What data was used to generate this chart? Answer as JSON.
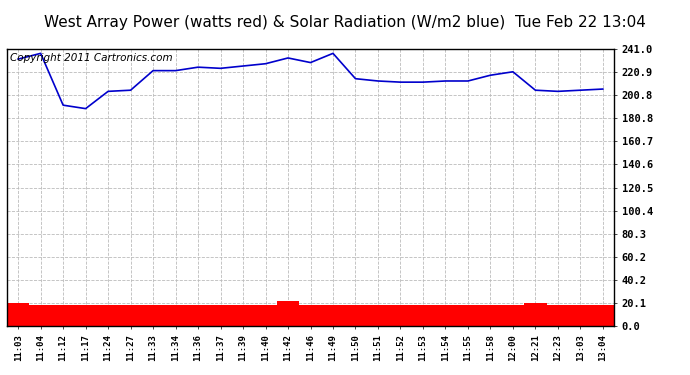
{
  "title": "West Array Power (watts red) & Solar Radiation (W/m2 blue)  Tue Feb 22 13:04",
  "copyright": "Copyright 2011 Cartronics.com",
  "x_labels": [
    "11:03",
    "11:04",
    "11:12",
    "11:17",
    "11:24",
    "11:27",
    "11:33",
    "11:34",
    "11:36",
    "11:37",
    "11:39",
    "11:40",
    "11:42",
    "11:46",
    "11:49",
    "11:50",
    "11:51",
    "11:52",
    "11:53",
    "11:54",
    "11:55",
    "11:58",
    "12:00",
    "12:21",
    "12:23",
    "13:03",
    "13:04"
  ],
  "blue_values": [
    232,
    237,
    192,
    189,
    204,
    205,
    222,
    222,
    225,
    224,
    226,
    228,
    233,
    229,
    237,
    215,
    213,
    212,
    212,
    213,
    213,
    218,
    221,
    205,
    204,
    205,
    206
  ],
  "red_values": [
    20.5,
    18.5,
    18.5,
    18.5,
    18.5,
    18.5,
    18.5,
    18.5,
    18.5,
    18.5,
    18.5,
    18.5,
    21.5,
    18.5,
    18.5,
    18.5,
    18.5,
    18.5,
    18.5,
    18.5,
    18.5,
    18.5,
    18.5,
    20.5,
    18.5,
    18.5,
    18.5
  ],
  "y_ticks": [
    0.0,
    20.1,
    40.2,
    60.2,
    80.3,
    100.4,
    120.5,
    140.6,
    160.7,
    180.8,
    200.8,
    220.9,
    241.0
  ],
  "y_tick_labels": [
    "0.0",
    "20.1",
    "40.2",
    "60.2",
    "80.3",
    "100.4",
    "120.5",
    "140.6",
    "160.7",
    "180.8",
    "200.8",
    "220.9",
    "241.0"
  ],
  "y_min": 0.0,
  "y_max": 241.0,
  "blue_color": "#0000cc",
  "red_color": "#ff0000",
  "grid_color": "#bbbbbb",
  "bg_color": "#ffffff",
  "title_fontsize": 11,
  "copyright_fontsize": 7.5
}
